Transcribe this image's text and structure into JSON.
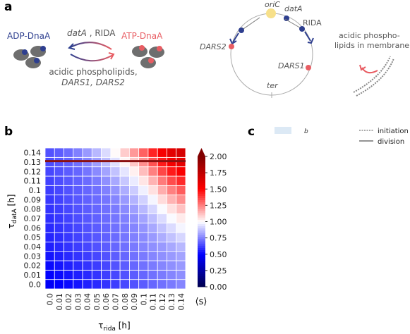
{
  "panels": {
    "a": {
      "label": "a",
      "adp_label": "ADP-DnaA",
      "atp_label": "ATP-DnaA",
      "arrow_top_italic": "datA",
      "arrow_top_rest": " , RIDA",
      "arrow_bottom_line1": "acidic phospholipids,",
      "arrow_bottom_line2": "DARS1, DARS2",
      "chromosome": {
        "oric": "oriC",
        "data": "datA",
        "rida": "RIDA",
        "dars2": "DARS2",
        "dars1": "DARS1",
        "ter": "ter"
      },
      "membrane_line1": "acidic phospho-",
      "membrane_line2": "lipids in membrane"
    },
    "b": {
      "label": "b"
    },
    "c": {
      "label": "c",
      "legend_swatch_label": "b",
      "legend_initiation": "initiation",
      "legend_division": "division"
    }
  },
  "colors": {
    "adp": "#2e3f8f",
    "atp": "#e85d63",
    "oric": "#f7e08a",
    "cell": "#6e6e6e",
    "line": "#8b1010",
    "swatch": "#dce9f5"
  },
  "chart_data": {
    "type": "heatmap",
    "x": [
      0.0,
      0.01,
      0.02,
      0.03,
      0.04,
      0.05,
      0.06,
      0.07,
      0.08,
      0.09,
      0.1,
      0.11,
      0.12,
      0.13,
      0.14
    ],
    "y": [
      0.0,
      0.01,
      0.02,
      0.03,
      0.04,
      0.05,
      0.06,
      0.07,
      0.08,
      0.09,
      0.1,
      0.11,
      0.12,
      0.13,
      0.14
    ],
    "x_tick_labels": [
      "0.0",
      "0.01",
      "0.02",
      "0.03",
      "0.04",
      "0.05",
      "0.06",
      "0.07",
      "0.08",
      "0.09",
      "0.1",
      "0.11",
      "0.12",
      "0.13",
      "0.14"
    ],
    "y_tick_labels": [
      "0.0",
      "0.01",
      "0.02",
      "0.03",
      "0.04",
      "0.05",
      "0.06",
      "0.07",
      "0.08",
      "0.09",
      "0.1",
      "0.11",
      "0.12",
      "0.13",
      "0.14"
    ],
    "xlabel_main": "τ",
    "xlabel_sub": "rida",
    "xlabel_unit": " [h]",
    "ylabel_main": "τ",
    "ylabel_sub": "datA",
    "ylabel_unit": " [h]",
    "colorbar": {
      "label": "⟨s⟩",
      "min": 0.0,
      "max": 2.0,
      "ticks": [
        0.0,
        0.25,
        0.5,
        0.75,
        1.0,
        1.25,
        1.5,
        1.75,
        2.0
      ],
      "tick_labels": [
        "0.00",
        "0.25",
        "0.50",
        "0.75",
        "1.00",
        "1.25",
        "1.50",
        "1.75",
        "2.00"
      ],
      "extend": "max",
      "colormap": "seismic"
    },
    "hline": {
      "y": 0.131,
      "color": "#8b1010"
    },
    "z": [
      [
        0.48,
        0.5,
        0.52,
        0.54,
        0.56,
        0.58,
        0.6,
        0.62,
        0.64,
        0.66,
        0.68,
        0.7,
        0.72,
        0.74,
        0.76
      ],
      [
        0.5,
        0.52,
        0.54,
        0.56,
        0.58,
        0.6,
        0.62,
        0.64,
        0.66,
        0.68,
        0.7,
        0.72,
        0.74,
        0.76,
        0.78
      ],
      [
        0.52,
        0.54,
        0.56,
        0.58,
        0.6,
        0.62,
        0.64,
        0.66,
        0.68,
        0.7,
        0.72,
        0.74,
        0.76,
        0.78,
        0.8
      ],
      [
        0.54,
        0.56,
        0.58,
        0.6,
        0.62,
        0.64,
        0.66,
        0.68,
        0.7,
        0.72,
        0.74,
        0.76,
        0.78,
        0.8,
        0.82
      ],
      [
        0.56,
        0.58,
        0.6,
        0.62,
        0.64,
        0.66,
        0.68,
        0.7,
        0.72,
        0.74,
        0.76,
        0.78,
        0.8,
        0.83,
        0.86
      ],
      [
        0.57,
        0.59,
        0.61,
        0.63,
        0.65,
        0.67,
        0.69,
        0.71,
        0.73,
        0.75,
        0.77,
        0.8,
        0.84,
        0.88,
        0.92
      ],
      [
        0.58,
        0.6,
        0.62,
        0.64,
        0.66,
        0.68,
        0.7,
        0.72,
        0.74,
        0.76,
        0.79,
        0.83,
        0.88,
        0.93,
        0.98
      ],
      [
        0.59,
        0.61,
        0.63,
        0.65,
        0.67,
        0.69,
        0.71,
        0.73,
        0.75,
        0.78,
        0.82,
        0.87,
        0.93,
        0.99,
        1.04
      ],
      [
        0.6,
        0.62,
        0.64,
        0.66,
        0.68,
        0.7,
        0.72,
        0.74,
        0.77,
        0.81,
        0.86,
        0.92,
        0.99,
        1.06,
        1.12
      ],
      [
        0.61,
        0.63,
        0.65,
        0.67,
        0.69,
        0.71,
        0.73,
        0.76,
        0.8,
        0.85,
        0.91,
        0.98,
        1.07,
        1.15,
        1.22
      ],
      [
        0.62,
        0.64,
        0.66,
        0.68,
        0.7,
        0.72,
        0.75,
        0.79,
        0.84,
        0.9,
        0.97,
        1.06,
        1.16,
        1.25,
        1.32
      ],
      [
        0.63,
        0.65,
        0.67,
        0.69,
        0.71,
        0.74,
        0.78,
        0.83,
        0.89,
        0.96,
        1.05,
        1.15,
        1.26,
        1.35,
        1.42
      ],
      [
        0.64,
        0.66,
        0.68,
        0.7,
        0.73,
        0.77,
        0.82,
        0.88,
        0.95,
        1.03,
        1.13,
        1.25,
        1.36,
        1.45,
        1.52
      ],
      [
        0.65,
        0.67,
        0.69,
        0.72,
        0.76,
        0.81,
        0.87,
        0.94,
        1.02,
        1.11,
        1.22,
        1.34,
        1.45,
        1.54,
        1.6
      ],
      [
        0.66,
        0.68,
        0.71,
        0.75,
        0.8,
        0.86,
        0.93,
        1.01,
        1.1,
        1.2,
        1.31,
        1.43,
        1.53,
        1.61,
        1.66
      ]
    ]
  }
}
